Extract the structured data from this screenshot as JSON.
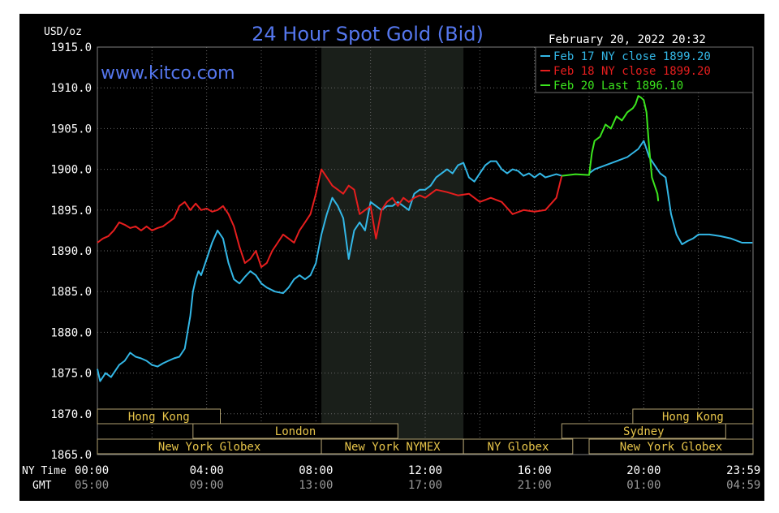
{
  "chart_data": {
    "type": "line",
    "title": "24 Hour Spot Gold (Bid)",
    "watermark": "www.kitco.com",
    "date_label": "February 20, 2022 20:32",
    "ylabel": "USD/oz",
    "ylim": [
      1865.0,
      1915.0
    ],
    "yticks": [
      "1915.0",
      "1910.0",
      "1905.0",
      "1900.0",
      "1895.0",
      "1890.0",
      "1885.0",
      "1880.0",
      "1875.0",
      "1870.0",
      "1865.0"
    ],
    "xlim_hours": [
      0,
      24
    ],
    "x_row_labels": {
      "ny": "NY Time",
      "gmt": "GMT"
    },
    "xticks_ny": [
      "00:00",
      "04:00",
      "08:00",
      "12:00",
      "16:00",
      "20:00",
      "23:59"
    ],
    "xticks_gmt": [
      "05:00",
      "09:00",
      "13:00",
      "17:00",
      "21:00",
      "01:00",
      "04:59"
    ],
    "xticks_hours": [
      0,
      4,
      8,
      12,
      16,
      20,
      23.98
    ],
    "grid": true,
    "legend_placement": "top-right",
    "series": [
      {
        "name": "Feb 17 NY close 1899.20",
        "color": "#33b7e6",
        "x": [
          0,
          0.1,
          0.3,
          0.5,
          0.8,
          1.0,
          1.2,
          1.4,
          1.6,
          1.8,
          2.0,
          2.2,
          2.4,
          2.6,
          2.8,
          3.0,
          3.2,
          3.4,
          3.5,
          3.6,
          3.7,
          3.8,
          4.0,
          4.2,
          4.4,
          4.6,
          4.7,
          4.8,
          5.0,
          5.2,
          5.4,
          5.6,
          5.8,
          6.0,
          6.2,
          6.5,
          6.8,
          7.0,
          7.2,
          7.4,
          7.6,
          7.8,
          8.0,
          8.2,
          8.4,
          8.6,
          8.8,
          9.0,
          9.2,
          9.4,
          9.6,
          9.8,
          10.0,
          10.2,
          10.4,
          10.6,
          10.8,
          11.0,
          11.2,
          11.4,
          11.6,
          11.8,
          12.0,
          12.2,
          12.4,
          12.6,
          12.8,
          13.0,
          13.2,
          13.4,
          13.6,
          13.8,
          14.0,
          14.2,
          14.4,
          14.6,
          14.8,
          15.0,
          15.2,
          15.4,
          15.6,
          15.8,
          16.0,
          16.2,
          16.4,
          16.6,
          16.8,
          17.0
        ],
        "values": [
          1875.5,
          1874.0,
          1875.0,
          1874.5,
          1876.0,
          1876.5,
          1877.5,
          1877.0,
          1876.8,
          1876.5,
          1876.0,
          1875.8,
          1876.2,
          1876.5,
          1876.8,
          1877.0,
          1878.0,
          1882.0,
          1885.0,
          1886.5,
          1887.5,
          1887.0,
          1889.0,
          1891.0,
          1892.5,
          1891.5,
          1890.0,
          1888.5,
          1886.5,
          1886.0,
          1886.8,
          1887.5,
          1887.0,
          1886.0,
          1885.5,
          1885.0,
          1884.8,
          1885.5,
          1886.5,
          1887.0,
          1886.5,
          1887.0,
          1888.5,
          1892.0,
          1894.5,
          1896.5,
          1895.5,
          1894.0,
          1889.0,
          1892.5,
          1893.5,
          1892.5,
          1896.0,
          1895.5,
          1895.0,
          1895.5,
          1895.5,
          1896.0,
          1895.5,
          1895.0,
          1897.0,
          1897.5,
          1897.5,
          1898.0,
          1899.0,
          1899.5,
          1900.0,
          1899.5,
          1900.5,
          1900.8,
          1899.0,
          1898.5,
          1899.5,
          1900.5,
          1901.0,
          1901.0,
          1900.0,
          1899.5,
          1900.0,
          1899.8,
          1899.2,
          1899.5,
          1899.0,
          1899.5,
          1899.0,
          1899.2,
          1899.4,
          1899.2
        ]
      },
      {
        "name": "Feb 18 NY close 1899.20",
        "color": "#e61e1e",
        "x": [
          0,
          0.2,
          0.4,
          0.6,
          0.8,
          1.0,
          1.2,
          1.4,
          1.6,
          1.8,
          2.0,
          2.2,
          2.4,
          2.6,
          2.8,
          3.0,
          3.2,
          3.4,
          3.6,
          3.8,
          4.0,
          4.2,
          4.4,
          4.6,
          4.8,
          5.0,
          5.2,
          5.4,
          5.6,
          5.8,
          6.0,
          6.2,
          6.4,
          6.6,
          6.8,
          7.0,
          7.2,
          7.4,
          7.6,
          7.8,
          8.0,
          8.2,
          8.4,
          8.6,
          8.8,
          9.0,
          9.2,
          9.4,
          9.6,
          9.8,
          10.0,
          10.2,
          10.4,
          10.6,
          10.8,
          11.0,
          11.2,
          11.4,
          11.6,
          11.8,
          12.0,
          12.4,
          12.8,
          13.2,
          13.6,
          14.0,
          14.4,
          14.8,
          15.2,
          15.6,
          16.0,
          16.4,
          16.8,
          17.0
        ],
        "values": [
          1891.0,
          1891.5,
          1891.8,
          1892.5,
          1893.5,
          1893.2,
          1892.8,
          1893.0,
          1892.5,
          1893.0,
          1892.5,
          1892.8,
          1893.0,
          1893.5,
          1894.0,
          1895.5,
          1896.0,
          1895.0,
          1895.8,
          1895.0,
          1895.2,
          1894.8,
          1895.0,
          1895.5,
          1894.5,
          1893.0,
          1890.5,
          1888.5,
          1889.0,
          1890.0,
          1888.0,
          1888.5,
          1890.0,
          1891.0,
          1892.0,
          1891.5,
          1891.0,
          1892.5,
          1893.5,
          1894.5,
          1897.0,
          1900.0,
          1899.0,
          1898.0,
          1897.5,
          1897.0,
          1898.0,
          1897.5,
          1894.5,
          1895.0,
          1895.5,
          1891.5,
          1895.0,
          1896.0,
          1896.5,
          1895.5,
          1896.5,
          1896.0,
          1896.5,
          1896.8,
          1896.5,
          1897.5,
          1897.2,
          1896.8,
          1897.0,
          1896.0,
          1896.5,
          1896.0,
          1894.5,
          1895.0,
          1894.8,
          1895.0,
          1896.5,
          1899.2
        ]
      },
      {
        "name": "Feb 20 Last 1896.10",
        "color": "#3ce61e",
        "x": [
          17.0,
          17.5,
          18.0,
          18.1,
          18.2,
          18.4,
          18.6,
          18.8,
          19.0,
          19.2,
          19.4,
          19.6,
          19.7,
          19.8,
          19.9,
          20.0,
          20.1,
          20.2,
          20.3,
          20.4,
          20.5,
          20.53
        ],
        "values": [
          1899.2,
          1899.4,
          1899.3,
          1902.0,
          1903.5,
          1904.0,
          1905.5,
          1905.0,
          1906.5,
          1906.0,
          1907.0,
          1907.5,
          1908.0,
          1909.0,
          1908.8,
          1908.5,
          1907.0,
          1902.5,
          1899.0,
          1898.0,
          1897.0,
          1896.1
        ]
      }
    ],
    "after_hours": {
      "color": "#33b7e6",
      "x": [
        18.0,
        18.2,
        18.6,
        19.0,
        19.4,
        19.8,
        20.0,
        20.2,
        20.4,
        20.6,
        20.8,
        21.0,
        21.2,
        21.4,
        21.6,
        21.8,
        22.0,
        22.4,
        22.8,
        23.2,
        23.6,
        23.98
      ],
      "values": [
        1899.5,
        1900.0,
        1900.5,
        1901.0,
        1901.5,
        1902.5,
        1903.5,
        1901.5,
        1900.5,
        1899.5,
        1899.0,
        1894.5,
        1892.0,
        1890.8,
        1891.2,
        1891.5,
        1892.0,
        1892.0,
        1891.8,
        1891.5,
        1891.0,
        1891.0
      ]
    },
    "highlight_band_hours": [
      8.2,
      13.4
    ],
    "sessions": [
      {
        "label": "Hong Kong",
        "start": 0,
        "end": 4.5,
        "row": 0
      },
      {
        "label": "Hong Kong",
        "start": 19.6,
        "end": 24,
        "row": 0
      },
      {
        "label": "London",
        "start": 3.5,
        "end": 11.0,
        "row": 1
      },
      {
        "label": "Sydney",
        "start": 17.0,
        "end": 23.0,
        "row": 1
      },
      {
        "label": "New York Globex",
        "start": 0,
        "end": 8.2,
        "row": 2
      },
      {
        "label": "New York NYMEX",
        "start": 8.2,
        "end": 13.4,
        "row": 2
      },
      {
        "label": "NY Globex",
        "start": 13.4,
        "end": 17.4,
        "row": 2
      },
      {
        "label": "New York Globex",
        "start": 18.0,
        "end": 24,
        "row": 2
      }
    ]
  }
}
